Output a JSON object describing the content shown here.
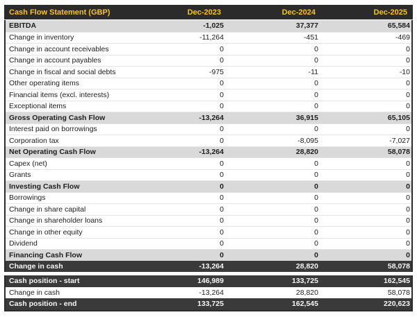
{
  "chart_data": {
    "type": "table",
    "title": "Cash Flow Statement (GBP)",
    "columns": [
      "Dec-2023",
      "Dec-2024",
      "Dec-2025"
    ],
    "rows": [
      {
        "label": "EBITDA",
        "values": [
          "-1,025",
          "37,377",
          "65,584"
        ],
        "style": "subtotal"
      },
      {
        "label": "Change in inventory",
        "values": [
          "-11,264",
          "-451",
          "-469"
        ],
        "style": "normal"
      },
      {
        "label": "Change in account receivables",
        "values": [
          "0",
          "0",
          "0"
        ],
        "style": "normal"
      },
      {
        "label": "Change in account payables",
        "values": [
          "0",
          "0",
          "0"
        ],
        "style": "normal"
      },
      {
        "label": "Change in fiscal and social debts",
        "values": [
          "-975",
          "-11",
          "-10"
        ],
        "style": "normal"
      },
      {
        "label": "Other operating items",
        "values": [
          "0",
          "0",
          "0"
        ],
        "style": "normal"
      },
      {
        "label": "Financial items (excl. interests)",
        "values": [
          "0",
          "0",
          "0"
        ],
        "style": "normal"
      },
      {
        "label": "Exceptional items",
        "values": [
          "0",
          "0",
          "0"
        ],
        "style": "normal"
      },
      {
        "label": "Gross Operating Cash Flow",
        "values": [
          "-13,264",
          "36,915",
          "65,105"
        ],
        "style": "subtotal"
      },
      {
        "label": "Interest paid on borrowings",
        "values": [
          "0",
          "0",
          "0"
        ],
        "style": "normal"
      },
      {
        "label": "Corporation tax",
        "values": [
          "0",
          "-8,095",
          "-7,027"
        ],
        "style": "normal"
      },
      {
        "label": "Net Operating Cash Flow",
        "values": [
          "-13,264",
          "28,820",
          "58,078"
        ],
        "style": "subtotal"
      },
      {
        "label": "Capex (net)",
        "values": [
          "0",
          "0",
          "0"
        ],
        "style": "normal"
      },
      {
        "label": "Grants",
        "values": [
          "0",
          "0",
          "0"
        ],
        "style": "normal"
      },
      {
        "label": "Investing Cash Flow",
        "values": [
          "0",
          "0",
          "0"
        ],
        "style": "subtotal"
      },
      {
        "label": "Borrowings",
        "values": [
          "0",
          "0",
          "0"
        ],
        "style": "normal"
      },
      {
        "label": "Change in share capital",
        "values": [
          "0",
          "0",
          "0"
        ],
        "style": "normal"
      },
      {
        "label": "Change in shareholder loans",
        "values": [
          "0",
          "0",
          "0"
        ],
        "style": "normal"
      },
      {
        "label": "Change in other equity",
        "values": [
          "0",
          "0",
          "0"
        ],
        "style": "normal"
      },
      {
        "label": "Dividend",
        "values": [
          "0",
          "0",
          "0"
        ],
        "style": "normal"
      },
      {
        "label": "Financing Cash Flow",
        "values": [
          "0",
          "0",
          "0"
        ],
        "style": "subtotal"
      },
      {
        "label": "Change in cash",
        "values": [
          "-13,264",
          "28,820",
          "58,078"
        ],
        "style": "dark"
      }
    ],
    "summary_rows": [
      {
        "label": "Cash position - start",
        "values": [
          "146,989",
          "133,725",
          "162,545"
        ],
        "style": "dark"
      },
      {
        "label": "Change in cash",
        "values": [
          "-13,264",
          "28,820",
          "58,078"
        ],
        "style": "normal"
      },
      {
        "label": "Cash position - end",
        "values": [
          "133,725",
          "162,545",
          "220,623"
        ],
        "style": "dark"
      }
    ]
  },
  "colors": {
    "accent_yellow": "#f6c22c",
    "header_bg": "#2b2b2b",
    "dark_row_bg": "#3a3a3a",
    "subtotal_row_bg": "#d9d9d9",
    "row_separator": "#e4e4e4",
    "body_text": "#202020"
  }
}
